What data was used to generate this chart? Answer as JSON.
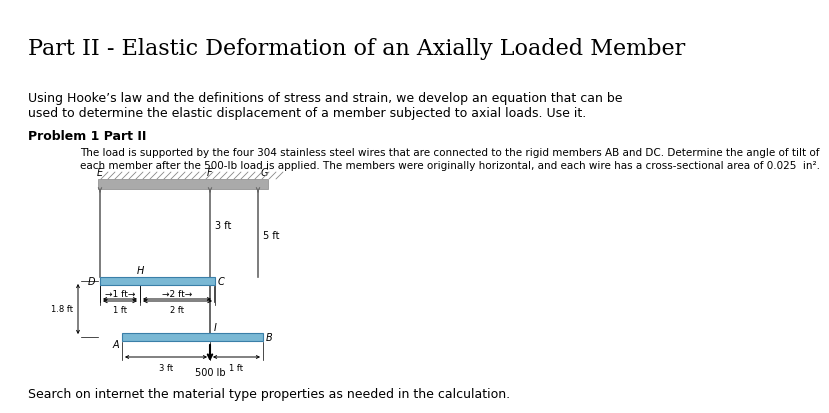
{
  "title": "Part II - Elastic Deformation of an Axially Loaded Member",
  "intro_line1": "Using Hooke’s law and the definitions of stress and strain, we develop an equation that can be",
  "intro_line2": "used to determine the elastic displacement of a member subjected to axial loads. Use it.",
  "problem_label": "Problem 1 Part II",
  "prob_line1": "The load is supported by the four 304 stainless steel wires that are connected to the rigid members AB and DC. Determine the angle of tilt of",
  "prob_line2": "each member after the 500-lb load is applied. The members were originally horizontal, and each wire has a cross-sectional area of 0.025  in².",
  "footer_text": "Search on internet the material type properties as needed in the calculation.",
  "bg_color": "#ffffff",
  "text_color": "#000000",
  "beam_color": "#7ab8d4",
  "beam_edge": "#3a7fa8",
  "wire_color": "#666666",
  "wall_color": "#aaaaaa",
  "wall_edge": "#888888"
}
